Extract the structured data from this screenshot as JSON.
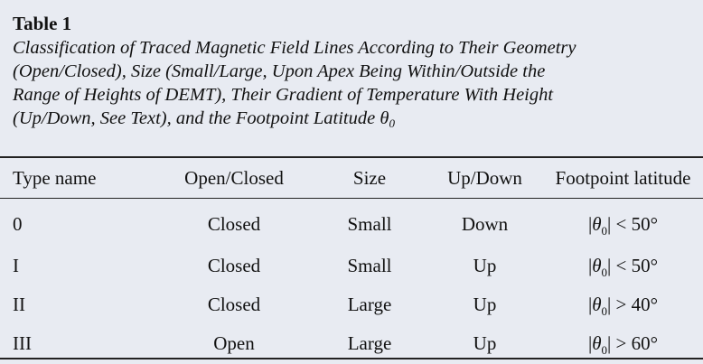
{
  "caption": {
    "label": "Table 1",
    "lines": [
      "Classification of Traced Magnetic Field Lines According to Their Geometry",
      "(Open/Closed), Size (Small/Large, Upon Apex Being Within/Outside the",
      "Range of Heights of DEMT), Their Gradient of Temperature With Height",
      "(Up/Down, See Text), and the Footpoint Latitude θ"
    ],
    "last_line_subscript": "0"
  },
  "table": {
    "headers": [
      "Type name",
      "Open/Closed",
      "Size",
      "Up/Down",
      "Footpoint latitude"
    ],
    "rows": [
      {
        "type": "0",
        "open_closed": "Closed",
        "size": "Small",
        "up_down": "Down",
        "lat_symbol": "θ",
        "lat_sub": "0",
        "lat_rel": "| < 50°"
      },
      {
        "type": "I",
        "open_closed": "Closed",
        "size": "Small",
        "up_down": "Up",
        "lat_symbol": "θ",
        "lat_sub": "0",
        "lat_rel": "| < 50°"
      },
      {
        "type": "II",
        "open_closed": "Closed",
        "size": "Large",
        "up_down": "Up",
        "lat_symbol": "θ",
        "lat_sub": "0",
        "lat_rel": "| > 40°"
      },
      {
        "type": "III",
        "open_closed": "Open",
        "size": "Large",
        "up_down": "Up",
        "lat_symbol": "θ",
        "lat_sub": "0",
        "lat_rel": "| > 60°"
      }
    ]
  }
}
